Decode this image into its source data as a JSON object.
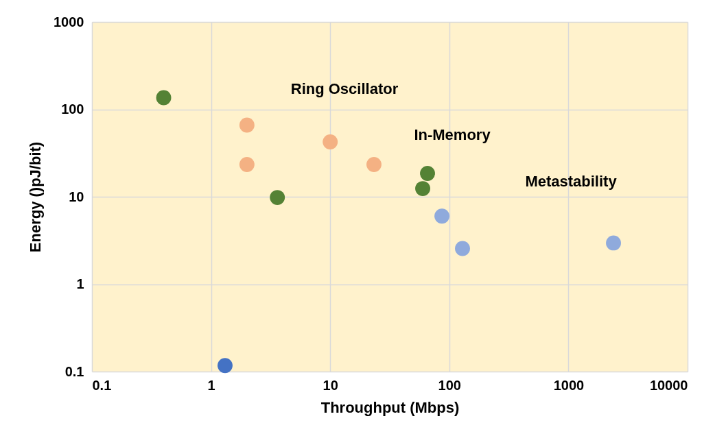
{
  "chart_data": {
    "type": "scatter",
    "xlabel": "Throughput (Mbps)",
    "ylabel": "Energy ()pJ/bit)",
    "log": "xy",
    "grid": true,
    "marker": "circle",
    "xlim": [
      0.1,
      10000
    ],
    "ylim": [
      0.1,
      1000
    ],
    "xticks": [
      0.1,
      1,
      10,
      100,
      1000,
      10000
    ],
    "yticks": [
      0.1,
      1,
      10,
      100,
      1000
    ],
    "series": [
      {
        "color": "#f4b183",
        "x": [
          2.0,
          2.0,
          10,
          23.3
        ],
        "values": [
          66,
          23.4,
          42.4,
          23.4
        ]
      },
      {
        "color": "#548235",
        "x": [
          0.4,
          3.6,
          65.6,
          59.8
        ],
        "values": [
          136,
          9.8,
          18.5,
          12.4
        ]
      },
      {
        "color": "#4472c4",
        "x": [
          1.31
        ],
        "values": [
          0.117
        ]
      },
      {
        "color": "#8faadc",
        "x": [
          86.7,
          129,
          2388
        ],
        "values": [
          6.0,
          2.56,
          2.96
        ]
      }
    ],
    "annotations": [
      "Ring Oscillator",
      "In-Memory",
      "Metastability"
    ]
  }
}
